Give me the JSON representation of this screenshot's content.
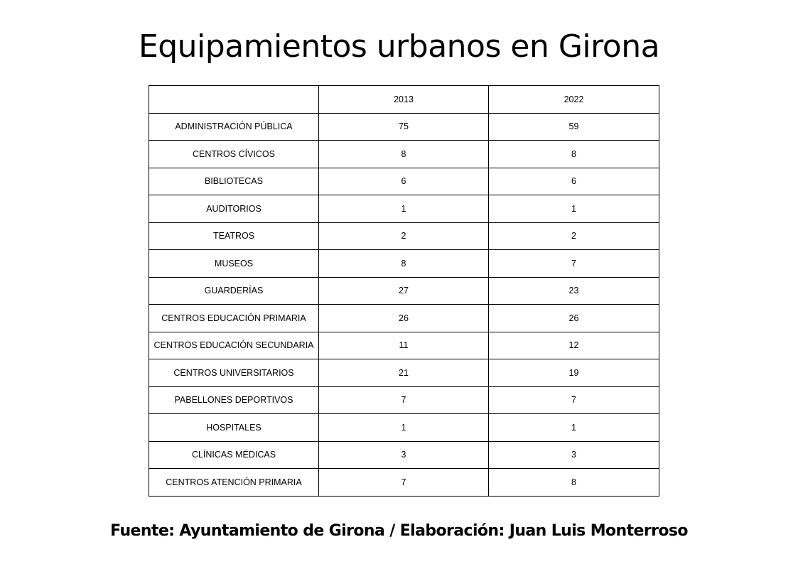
{
  "title": "Equipamientos urbanos en Girona",
  "table": {
    "headers": [
      "",
      "2013",
      "2022"
    ],
    "rows": [
      {
        "label": "ADMINISTRACIÓN PÚBLICA",
        "y2013": "75",
        "y2022": "59"
      },
      {
        "label": "CENTROS CÍVICOS",
        "y2013": "8",
        "y2022": "8"
      },
      {
        "label": "BIBLIOTECAS",
        "y2013": "6",
        "y2022": "6"
      },
      {
        "label": "AUDITORIOS",
        "y2013": "1",
        "y2022": "1"
      },
      {
        "label": "TEATROS",
        "y2013": "2",
        "y2022": "2"
      },
      {
        "label": "MUSEOS",
        "y2013": "8",
        "y2022": "7"
      },
      {
        "label": "GUARDERÍAS",
        "y2013": "27",
        "y2022": "23"
      },
      {
        "label": "CENTROS EDUCACIÓN PRIMARIA",
        "y2013": "26",
        "y2022": "26"
      },
      {
        "label": "CENTROS EDUCACIÓN SECUNDARIA",
        "y2013": "11",
        "y2022": "12"
      },
      {
        "label": "CENTROS UNIVERSITARIOS",
        "y2013": "21",
        "y2022": "19"
      },
      {
        "label": "PABELLONES DEPORTIVOS",
        "y2013": "7",
        "y2022": "7"
      },
      {
        "label": "HOSPITALES",
        "y2013": "1",
        "y2022": "1"
      },
      {
        "label": "CLÍNICAS MÉDICAS",
        "y2013": "3",
        "y2022": "3"
      },
      {
        "label": "CENTROS ATENCIÓN PRIMARIA",
        "y2013": "7",
        "y2022": "8"
      }
    ]
  },
  "source": "Fuente: Ayuntamiento de Girona / Elaboración: Juan Luis Monterroso"
}
